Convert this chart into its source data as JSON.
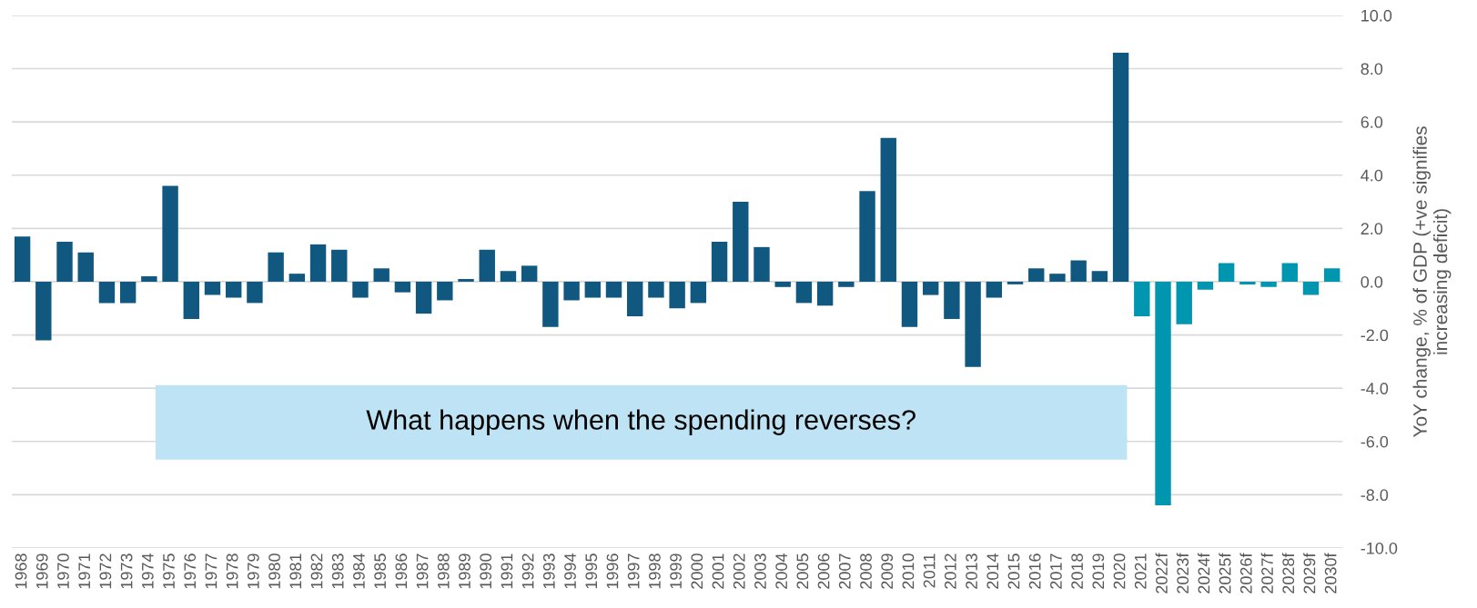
{
  "chart_data": {
    "type": "bar",
    "ylabel": "YoY change, % of GDP (+ve signifies\nincreasing deficit)",
    "categories": [
      "1968",
      "1969",
      "1970",
      "1971",
      "1972",
      "1973",
      "1974",
      "1975",
      "1976",
      "1977",
      "1978",
      "1979",
      "1980",
      "1981",
      "1982",
      "1983",
      "1984",
      "1985",
      "1986",
      "1987",
      "1988",
      "1989",
      "1990",
      "1991",
      "1992",
      "1993",
      "1994",
      "1995",
      "1996",
      "1997",
      "1998",
      "1999",
      "2000",
      "2001",
      "2002",
      "2003",
      "2004",
      "2005",
      "2006",
      "2007",
      "2008",
      "2009",
      "2010",
      "2011",
      "2012",
      "2013",
      "2014",
      "2015",
      "2016",
      "2017",
      "2018",
      "2019",
      "2020",
      "2021",
      "2022f",
      "2023f",
      "2024f",
      "2025f",
      "2026f",
      "2027f",
      "2028f",
      "2029f",
      "2030f"
    ],
    "values": [
      1.7,
      -2.2,
      1.5,
      1.1,
      -0.8,
      -0.8,
      0.2,
      3.6,
      -1.4,
      -0.5,
      -0.6,
      -0.8,
      1.1,
      0.3,
      1.4,
      1.2,
      -0.6,
      0.5,
      -0.4,
      -1.2,
      -0.7,
      0.1,
      1.2,
      0.4,
      0.6,
      -1.7,
      -0.7,
      -0.6,
      -0.6,
      -1.3,
      -0.6,
      -1.0,
      -0.8,
      1.5,
      3.0,
      1.3,
      -0.2,
      -0.8,
      -0.9,
      -0.2,
      3.4,
      5.4,
      -1.7,
      -0.5,
      -1.4,
      -3.2,
      -0.6,
      -0.1,
      0.5,
      0.3,
      0.8,
      0.4,
      8.6,
      -1.3,
      -8.4,
      -1.6,
      -0.3,
      0.7,
      -0.1,
      -0.2,
      0.7,
      -0.5,
      0.5
    ],
    "colors": [
      "#10587f",
      "#10587f",
      "#10587f",
      "#10587f",
      "#10587f",
      "#10587f",
      "#10587f",
      "#10587f",
      "#10587f",
      "#10587f",
      "#10587f",
      "#10587f",
      "#10587f",
      "#10587f",
      "#10587f",
      "#10587f",
      "#10587f",
      "#10587f",
      "#10587f",
      "#10587f",
      "#10587f",
      "#10587f",
      "#10587f",
      "#10587f",
      "#10587f",
      "#10587f",
      "#10587f",
      "#10587f",
      "#10587f",
      "#10587f",
      "#10587f",
      "#10587f",
      "#10587f",
      "#10587f",
      "#10587f",
      "#10587f",
      "#10587f",
      "#10587f",
      "#10587f",
      "#10587f",
      "#10587f",
      "#10587f",
      "#10587f",
      "#10587f",
      "#10587f",
      "#10587f",
      "#10587f",
      "#10587f",
      "#10587f",
      "#10587f",
      "#10587f",
      "#10587f",
      "#10587f",
      "#0096b0",
      "#0096b0",
      "#0096b0",
      "#0096b0",
      "#0096b0",
      "#0096b0",
      "#0096b0",
      "#0096b0",
      "#0096b0",
      "#0096b0"
    ],
    "ylim": [
      -10,
      10
    ],
    "yticks": [
      {
        "value": 10,
        "label": "10.0"
      },
      {
        "value": 8,
        "label": "8.0"
      },
      {
        "value": 6,
        "label": "6.0"
      },
      {
        "value": 4,
        "label": "4.0"
      },
      {
        "value": 2,
        "label": "2.0"
      },
      {
        "value": 0,
        "label": "0.0"
      },
      {
        "value": -2,
        "label": "-2.0"
      },
      {
        "value": -4,
        "label": "-4.0"
      },
      {
        "value": -6,
        "label": "-6.0"
      },
      {
        "value": -8,
        "label": "-8.0"
      },
      {
        "value": -10,
        "label": "-10.0"
      }
    ],
    "grid": "y",
    "annotations": [
      "What happens when the spending reverses?"
    ]
  }
}
